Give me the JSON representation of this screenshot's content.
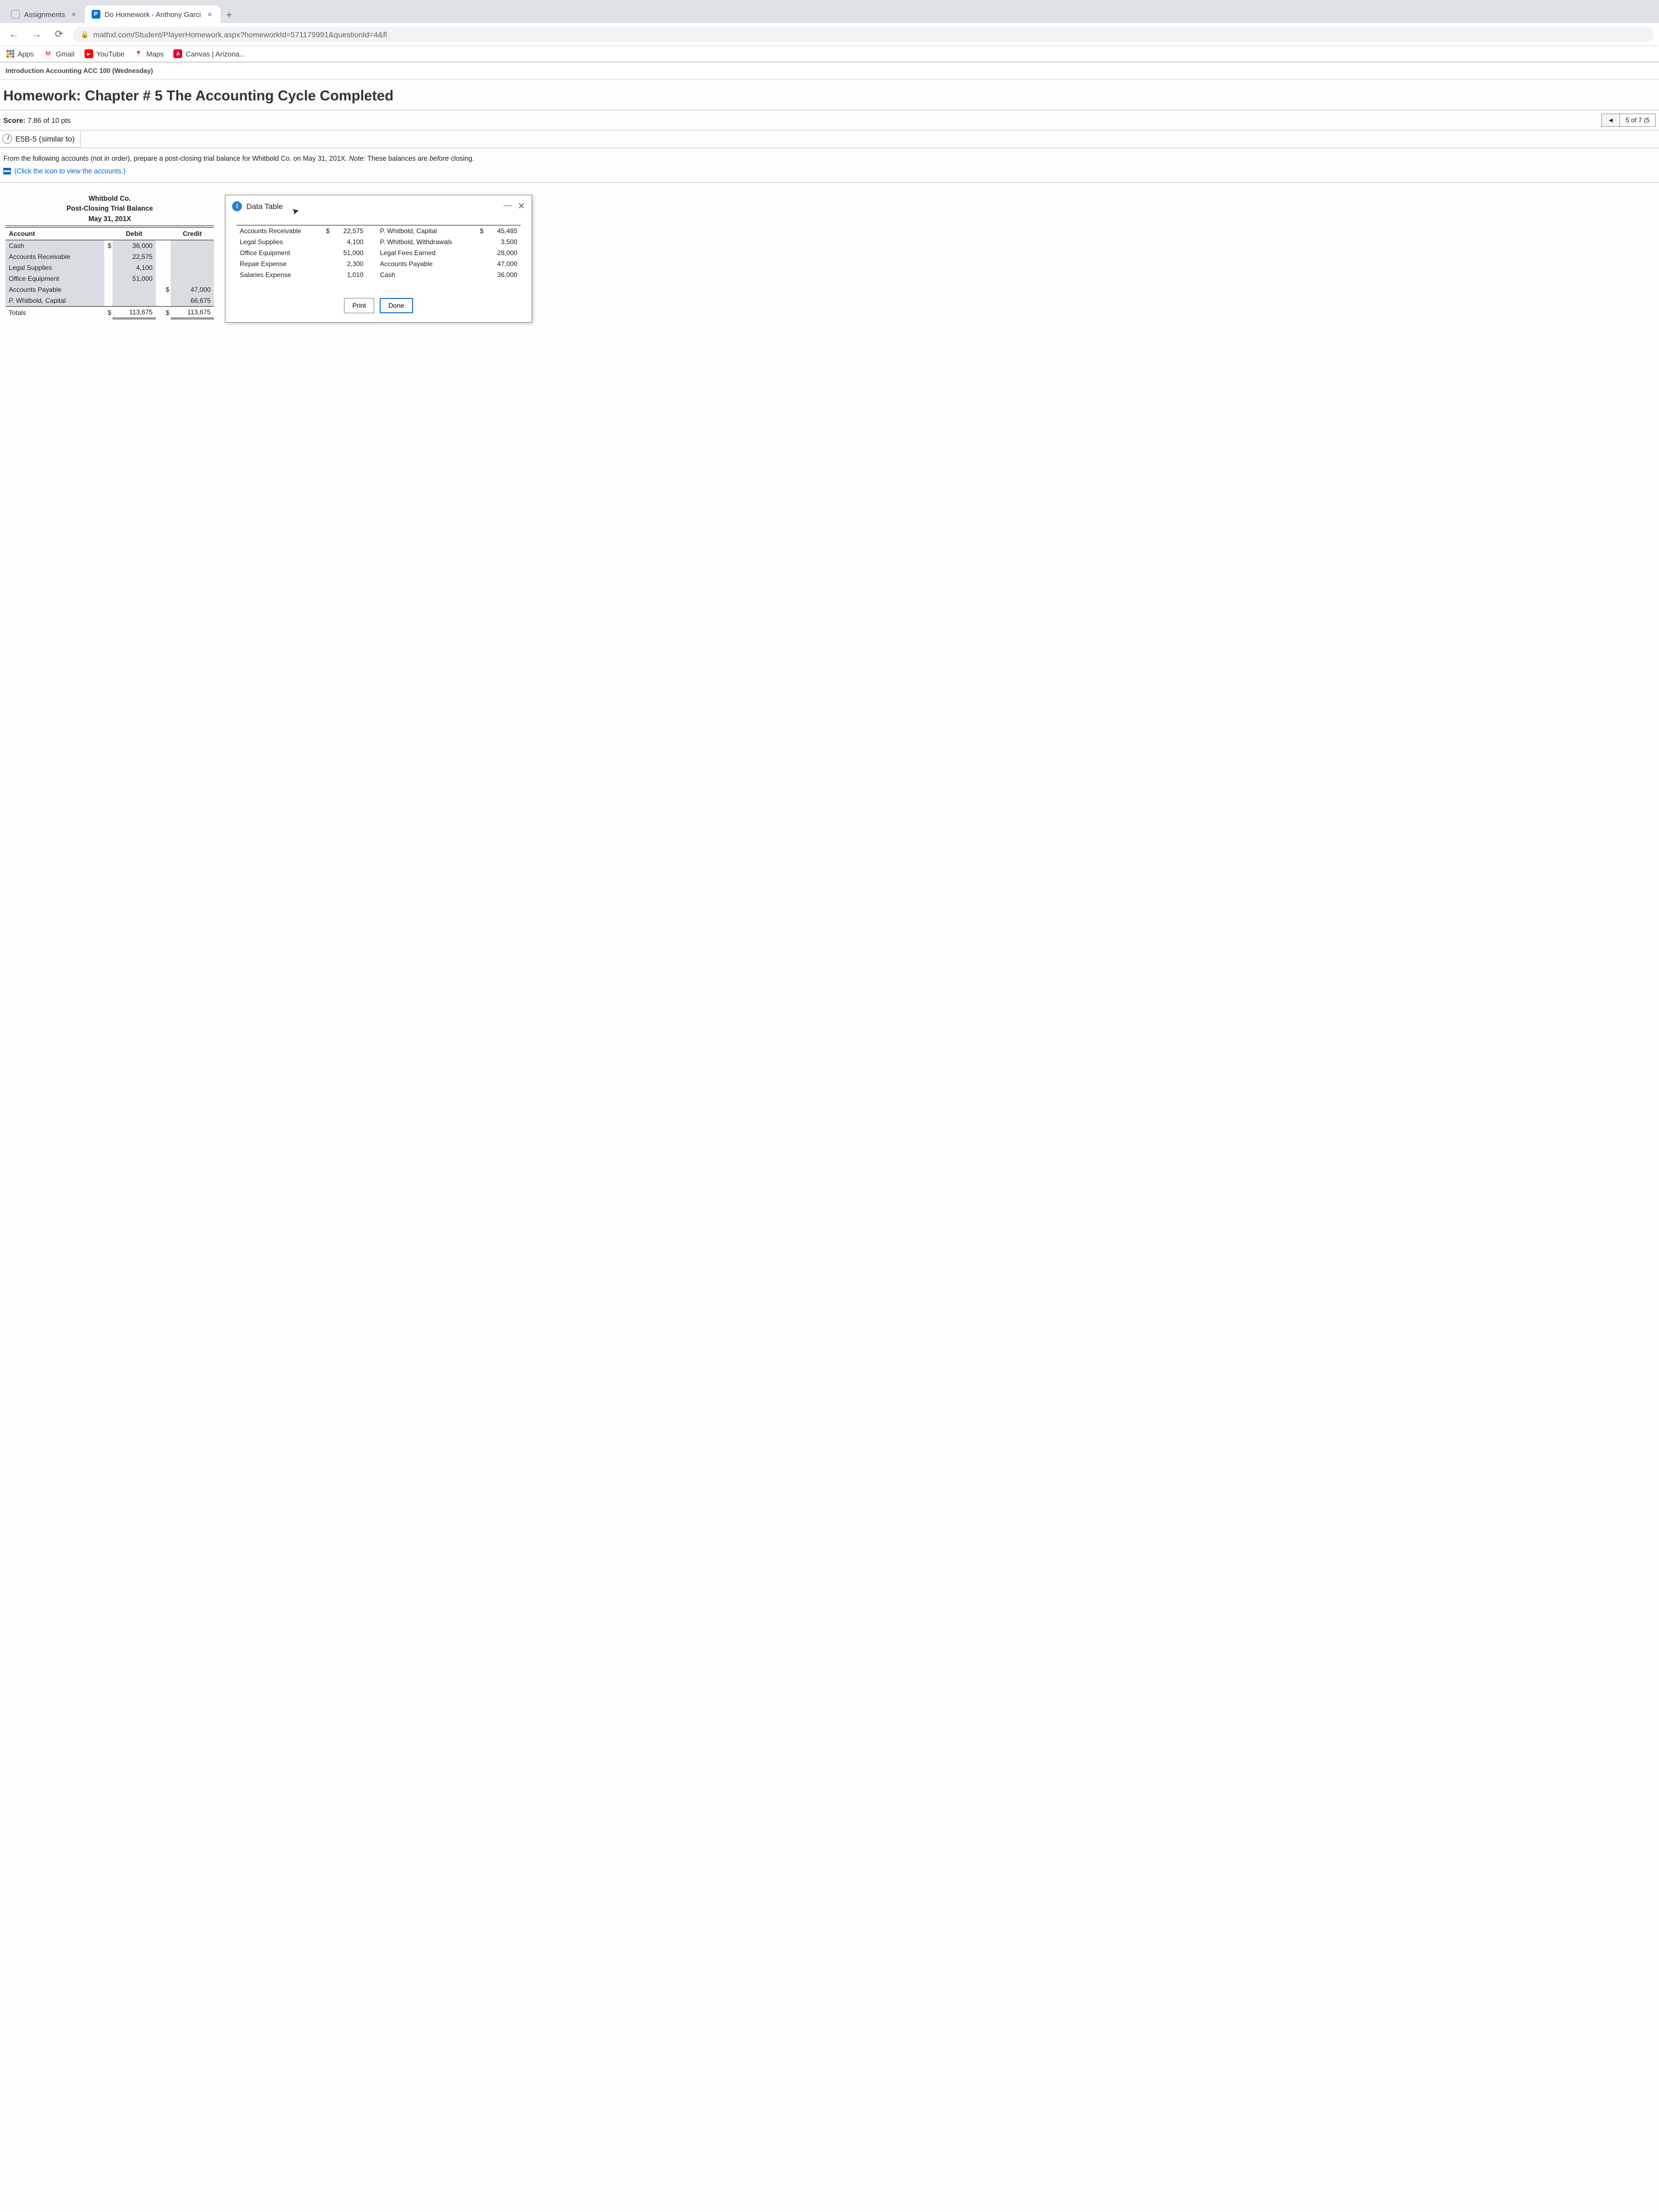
{
  "browser": {
    "tabs": [
      {
        "favicon_bg": "#dadce0",
        "favicon_text": "",
        "title": "Assignments"
      },
      {
        "favicon_bg": "#0073cf",
        "favicon_text": "P",
        "title": "Do Homework - Anthony Garci"
      }
    ],
    "url": "mathxl.com/Student/PlayerHomework.aspx?homeworkId=571179991&questionId=4&fl",
    "bookmarks": {
      "apps": "Apps",
      "items": [
        {
          "label": "Gmail",
          "icon_bg": "#ffffff",
          "icon_text": "M",
          "icon_color": "#ea4335"
        },
        {
          "label": "YouTube",
          "icon_bg": "#ff0000",
          "icon_text": "▶",
          "icon_color": "#ffffff"
        },
        {
          "label": "Maps",
          "icon_bg": "#ffffff",
          "icon_text": "📍",
          "icon_color": ""
        },
        {
          "label": "Canvas | Arizona...",
          "icon_bg": "#e4002b",
          "icon_text": "A",
          "icon_color": "#ffffff"
        }
      ]
    }
  },
  "course": "Introduction Accounting ACC 100 (Wednesday)",
  "homework_title": "Homework: Chapter # 5 The Accounting Cycle Completed",
  "score_label": "Score:",
  "score_value": "7.86 of 10 pts",
  "pager": "5 of 7 (5",
  "problem_id": "E5B-5 (similar to)",
  "instructions": "From the following accounts (not in order), prepare a post-closing trial balance for Whitbold Co. on May 31, 201X.",
  "instructions_note": "Note: These balances are before closing.",
  "link_text": "(Click the icon to view the accounts.)",
  "trial_balance": {
    "company": "Whitbold Co.",
    "title": "Post-Closing Trial Balance",
    "date": "May 31, 201X",
    "columns": [
      "Account",
      "Debit",
      "Credit"
    ],
    "rows": [
      {
        "account": "Cash",
        "debit": "36,000",
        "credit": "",
        "debit_sym": "$"
      },
      {
        "account": "Accounts Receivable",
        "debit": "22,575",
        "credit": ""
      },
      {
        "account": "Legal Supplies",
        "debit": "4,100",
        "credit": ""
      },
      {
        "account": "Office Equipment",
        "debit": "51,000",
        "credit": ""
      },
      {
        "account": "Accounts Payable",
        "debit": "",
        "credit": "47,000",
        "credit_sym": "$"
      },
      {
        "account": "P. Whitbold, Capital",
        "debit": "",
        "credit": "66,675"
      }
    ],
    "totals_label": "Totals",
    "total_debit": "113,675",
    "total_credit": "113,675",
    "total_sym": "$"
  },
  "popup": {
    "title": "Data Table",
    "left": [
      {
        "label": "Accounts Receivable",
        "value": "22,575",
        "sym": "$"
      },
      {
        "label": "Legal Supplies",
        "value": "4,100"
      },
      {
        "label": "Office Equipment",
        "value": "51,000"
      },
      {
        "label": "Repair Expense",
        "value": "2,300"
      },
      {
        "label": "Salaries Expense",
        "value": "1,010"
      }
    ],
    "right": [
      {
        "label": "P. Whitbold, Capital",
        "value": "45,485",
        "sym": "$"
      },
      {
        "label": "P. Whitbold, Withdrawals",
        "value": "3,500"
      },
      {
        "label": "Legal Fees Earned",
        "value": "28,000"
      },
      {
        "label": "Accounts Payable",
        "value": "47,000"
      },
      {
        "label": "Cash",
        "value": "36,000"
      }
    ],
    "print": "Print",
    "done": "Done"
  }
}
